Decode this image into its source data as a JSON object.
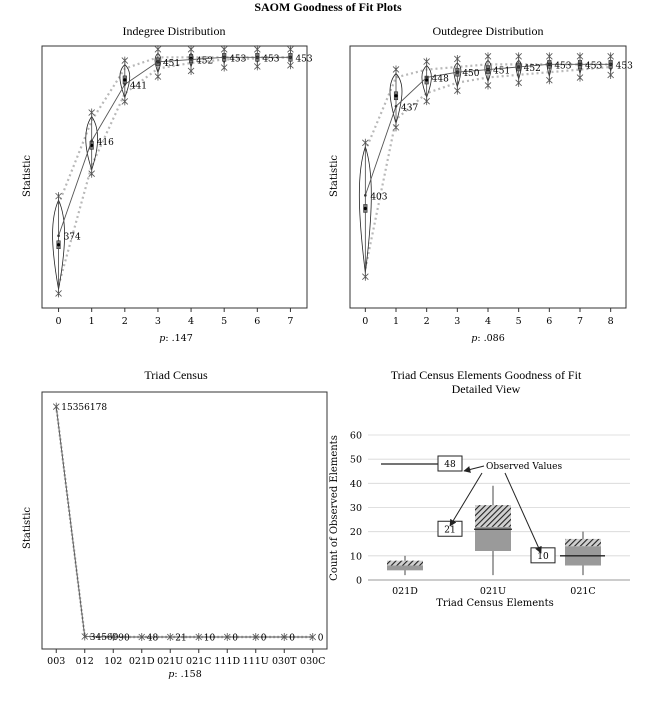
{
  "title": "SAOM Goodness of Fit Plots",
  "chart_data": [
    {
      "type": "violin",
      "title": "Indegree Distribution",
      "ylabel": "Statistic",
      "p_prefix": "p",
      "p_value": ": .147",
      "categories": [
        "0",
        "1",
        "2",
        "3",
        "4",
        "5",
        "6",
        "7"
      ],
      "observed": [
        374,
        416,
        441,
        451,
        452,
        453,
        453,
        453
      ],
      "observed_labels": [
        "374",
        "416",
        "441",
        "451",
        "452",
        "453",
        "453",
        "453"
      ],
      "simulated_mean": [
        370,
        414,
        443,
        451,
        452.5,
        453,
        453,
        453
      ],
      "band_low": [
        352,
        405,
        437,
        448,
        450.5,
        452,
        452.5,
        453
      ],
      "band_high": [
        388,
        425,
        448,
        453,
        453,
        453,
        453,
        453
      ],
      "ylim": [
        342,
        458
      ]
    },
    {
      "type": "violin",
      "title": "Outdegree Distribution",
      "ylabel": "Statistic",
      "p_prefix": "p",
      "p_value": ": .086",
      "categories": [
        "0",
        "1",
        "2",
        "3",
        "4",
        "5",
        "6",
        "7",
        "8"
      ],
      "observed": [
        403,
        437,
        448,
        450,
        451,
        452,
        453,
        453,
        453
      ],
      "observed_labels": [
        "403",
        "437",
        "448",
        "450",
        "451",
        "452",
        "453",
        "453",
        "453"
      ],
      "simulated_mean": [
        398,
        441,
        447,
        450,
        451,
        452,
        453,
        453,
        453
      ],
      "band_low": [
        375,
        432,
        442,
        446,
        448,
        449,
        450,
        451,
        452
      ],
      "band_high": [
        420,
        448,
        451,
        452,
        453,
        453,
        453,
        453,
        453
      ],
      "ylim": [
        360,
        460
      ]
    },
    {
      "type": "line",
      "title": "Triad Census",
      "ylabel": "Statistic",
      "p_prefix": "p",
      "p_value": ": .158",
      "categories": [
        "003",
        "012",
        "102",
        "021D",
        "021U",
        "021C",
        "111D",
        "111U",
        "030T",
        "030C"
      ],
      "values": [
        15356178,
        34569,
        90,
        48,
        21,
        10,
        0,
        0,
        0,
        0
      ],
      "point_labels": [
        "15356178",
        "34569",
        "90",
        "48",
        "21",
        "10",
        "0",
        "0",
        "0",
        "0"
      ],
      "ylim": [
        0,
        15800000
      ]
    },
    {
      "type": "bar",
      "title": "Triad Census Elements Goodness of Fit",
      "subtitle": "Detailed View",
      "xlabel": "Triad Census Elements",
      "ylabel": "Count of Observed Elements",
      "categories": [
        "021D",
        "021U",
        "021C"
      ],
      "ylim": [
        0,
        60
      ],
      "yticks": [
        0,
        10,
        20,
        30,
        40,
        50,
        60
      ],
      "box_low": [
        4,
        12,
        6
      ],
      "box_mid": [
        6,
        22,
        14
      ],
      "box_high": [
        8,
        31,
        17
      ],
      "whisker_low": [
        2,
        2,
        2
      ],
      "whisker_high": [
        10,
        39,
        20
      ],
      "observed": [
        48,
        21,
        10
      ],
      "observed_labels": [
        "48",
        "21",
        "10"
      ],
      "annotation": "Observed Values"
    }
  ]
}
